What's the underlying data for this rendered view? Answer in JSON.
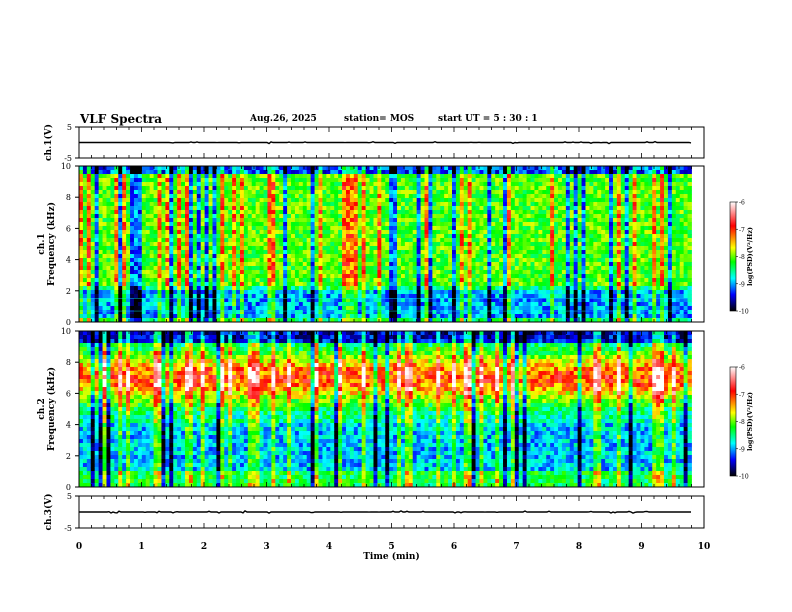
{
  "header": {
    "title": "VLF Spectra",
    "date": "Aug.26, 2025",
    "station": "station= MOS",
    "start": "start  UT  =   5  : 30 : 1"
  },
  "chart_data": [
    {
      "type": "line",
      "panel": "ch1-waveform",
      "ylabel": "ch.1(V)",
      "ylim": [
        -5,
        5
      ],
      "yticks": [
        "5",
        "-5"
      ],
      "baseline_v": 0
    },
    {
      "type": "heatmap",
      "panel": "ch1-spectrogram",
      "ylabel": "ch.1\nFrequency (kHz)",
      "ylim": [
        0,
        10
      ],
      "yticks": [
        "0",
        "2",
        "4",
        "6",
        "8",
        "10"
      ],
      "colorbar": {
        "label": "log(PSD)(V²/Hz)",
        "range": [
          -10,
          -6
        ],
        "ticks": [
          "-6",
          "-7",
          "-8",
          "-9",
          "-10"
        ],
        "colors": [
          "#ffffff",
          "#ff0000",
          "#ffff00",
          "#00ff00",
          "#00ffff",
          "#0000ff",
          "#000000"
        ]
      },
      "dominant_band_khz": [
        2,
        9.5
      ],
      "low_band_dark_khz": [
        0.3,
        2
      ]
    },
    {
      "type": "heatmap",
      "panel": "ch2-spectrogram",
      "ylabel": "ch.2\nFrequency (kHz)",
      "ylim": [
        0,
        10
      ],
      "yticks": [
        "0",
        "2",
        "4",
        "6",
        "8",
        "10"
      ],
      "colorbar": {
        "label": "log(PSD)(V²/Hz)",
        "range": [
          -10,
          -6
        ],
        "ticks": [
          "-6",
          "-7",
          "-8",
          "-9",
          "-10"
        ],
        "colors": [
          "#ffffff",
          "#ff0000",
          "#ffff00",
          "#00ff00",
          "#00ffff",
          "#0000ff",
          "#000000"
        ]
      },
      "peak_band_khz": [
        6,
        8
      ]
    },
    {
      "type": "line",
      "panel": "ch3-waveform",
      "ylabel": "ch.3(V)",
      "ylim": [
        -5,
        5
      ],
      "yticks": [
        "5",
        "-5"
      ],
      "baseline_v": 0
    }
  ],
  "xaxis": {
    "label": "Time (min)",
    "xlim": [
      0,
      10
    ],
    "ticks": [
      "0",
      "1",
      "2",
      "3",
      "4",
      "5",
      "6",
      "7",
      "8",
      "9",
      "10"
    ],
    "data_end_min": 9.8
  }
}
